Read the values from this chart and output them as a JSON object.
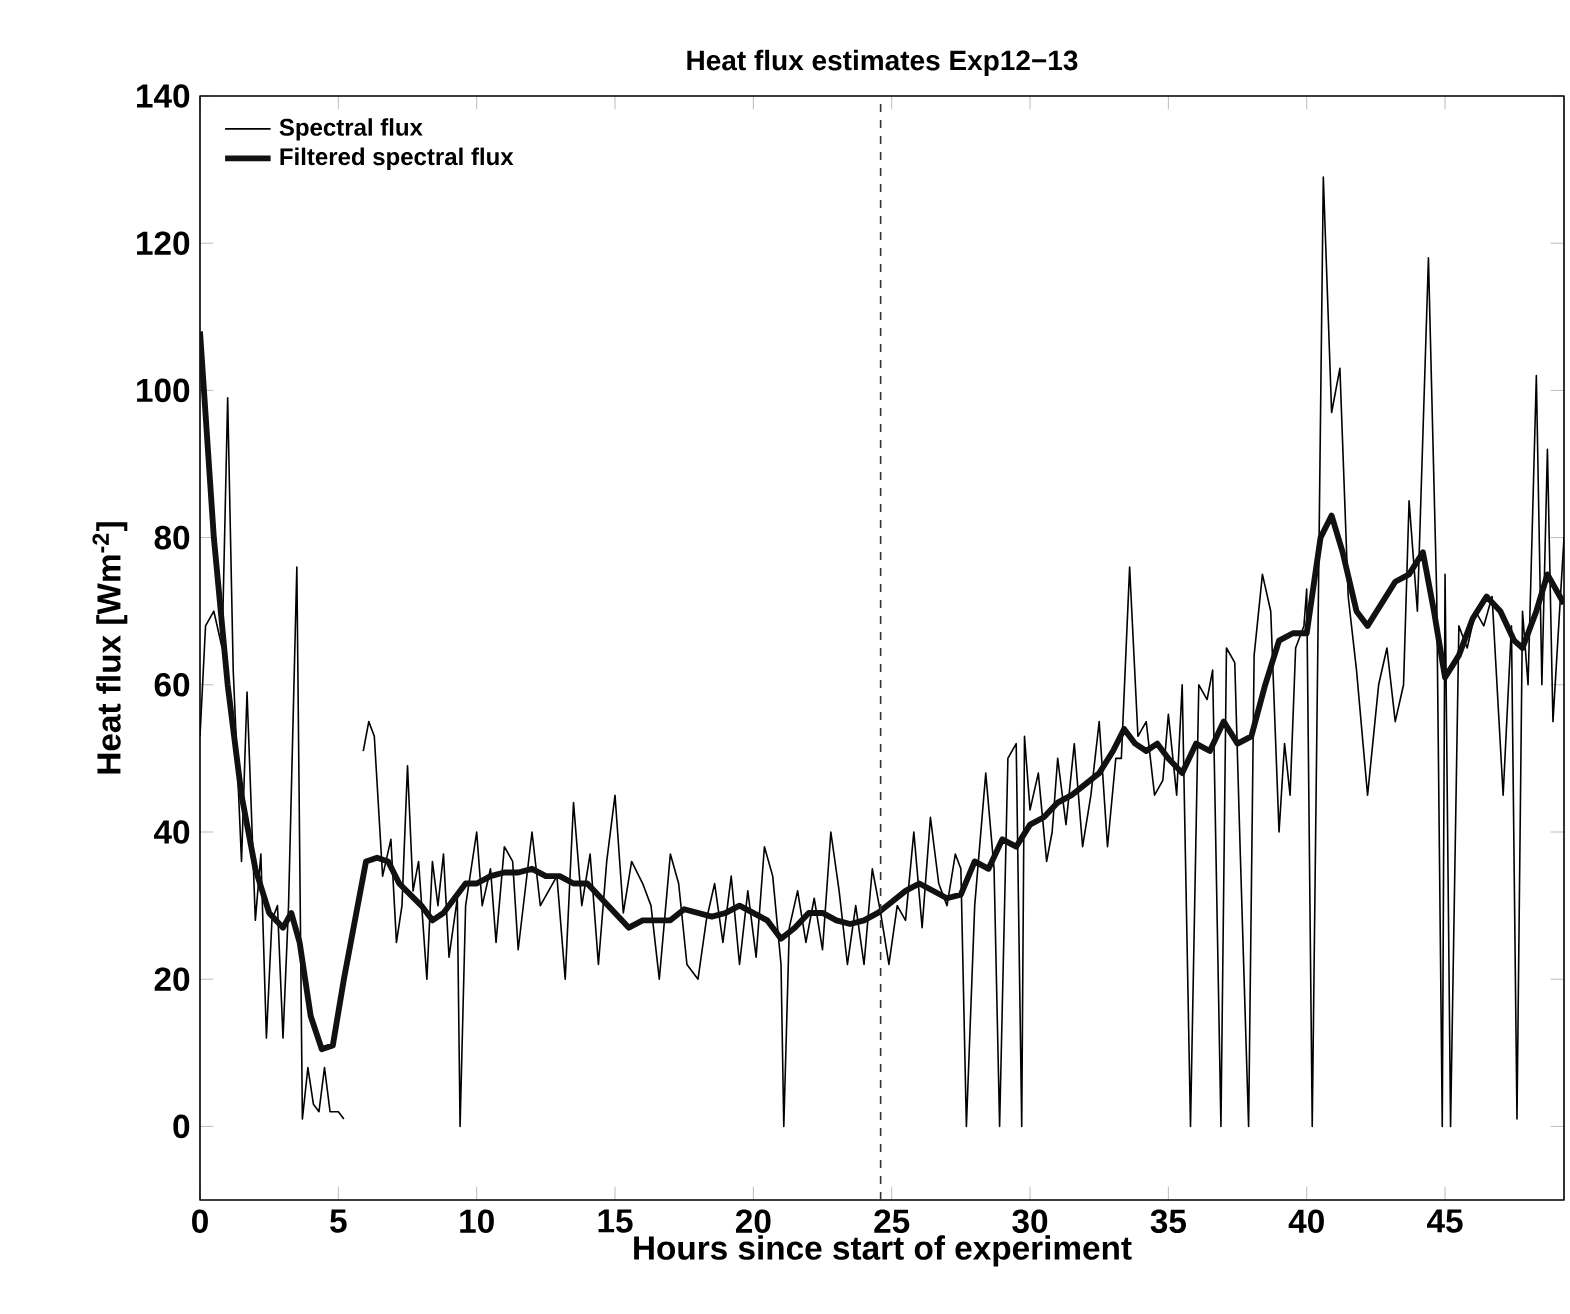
{
  "chart_data": {
    "type": "line",
    "title": "Heat flux estimates Exp12−13",
    "xlabel": "Hours since start of experiment",
    "ylabel": "Heat flux [Wm$^{-2}$]",
    "xlim": [
      0,
      49.3
    ],
    "ylim": [
      -10,
      140
    ],
    "xticks": [
      0,
      5,
      10,
      15,
      20,
      25,
      30,
      35,
      40,
      45
    ],
    "yticks": [
      0,
      20,
      40,
      60,
      80,
      100,
      120,
      140
    ],
    "grid": false,
    "legend": "top left",
    "marker": "none",
    "line_style": "solid",
    "ref_lines": [
      {
        "axis": "x",
        "value": 24.6,
        "line_style": "dashed",
        "color": "#333333"
      }
    ],
    "series": [
      {
        "name": "Spectral flux",
        "color": "#000000",
        "x": [
          0,
          0.2,
          0.5,
          0.8,
          1.0,
          1.2,
          1.5,
          1.7,
          2.0,
          2.2,
          2.4,
          2.6,
          2.8,
          3.0,
          3.2,
          3.5,
          3.7,
          3.9,
          4.1,
          4.3,
          4.5,
          4.7,
          5.0,
          5.2,
          5.5,
          5.9,
          6.1,
          6.3,
          6.6,
          6.9,
          7.1,
          7.3,
          7.5,
          7.7,
          7.9,
          8.2,
          8.4,
          8.6,
          8.8,
          9.0,
          9.3,
          9.4,
          9.6,
          10.0,
          10.2,
          10.5,
          10.7,
          11.0,
          11.3,
          11.5,
          12.0,
          12.3,
          12.6,
          12.9,
          13.2,
          13.5,
          13.8,
          14.1,
          14.4,
          14.7,
          15.0,
          15.3,
          15.6,
          16.0,
          16.3,
          16.6,
          17.0,
          17.3,
          17.6,
          18.0,
          18.3,
          18.6,
          18.9,
          19.2,
          19.5,
          19.8,
          20.1,
          20.4,
          20.7,
          21.0,
          21.1,
          21.3,
          21.6,
          21.9,
          22.2,
          22.5,
          22.8,
          23.1,
          23.4,
          23.7,
          24.0,
          24.3,
          24.6,
          24.9,
          25.2,
          25.5,
          25.8,
          26.1,
          26.4,
          26.7,
          27.0,
          27.3,
          27.5,
          27.7,
          28.0,
          28.4,
          28.7,
          28.9,
          29.2,
          29.5,
          29.7,
          29.8,
          30.0,
          30.3,
          30.6,
          30.8,
          31.0,
          31.3,
          31.6,
          31.9,
          32.2,
          32.5,
          32.8,
          33.1,
          33.3,
          33.6,
          33.9,
          34.2,
          34.5,
          34.8,
          35.0,
          35.3,
          35.5,
          35.8,
          36.1,
          36.4,
          36.6,
          36.9,
          37.1,
          37.4,
          37.6,
          37.9,
          38.1,
          38.4,
          38.7,
          39.0,
          39.2,
          39.4,
          39.6,
          39.9,
          40.0,
          40.2,
          40.6,
          40.9,
          41.2,
          41.5,
          41.8,
          42.2,
          42.6,
          42.9,
          43.2,
          43.5,
          43.7,
          44.0,
          44.4,
          44.7,
          44.9,
          45.0,
          45.2,
          45.5,
          45.8,
          46.1,
          46.4,
          46.7,
          47.1,
          47.4,
          47.6,
          47.8,
          48.0,
          48.3,
          48.5,
          48.7,
          48.9,
          49.3
        ],
        "values": [
          53,
          68,
          70,
          65,
          99,
          62,
          36,
          59,
          28,
          37,
          12,
          28,
          30,
          12,
          30,
          76,
          1,
          8,
          3,
          2,
          8,
          2,
          2,
          1,
          null,
          51,
          55,
          53,
          34,
          39,
          25,
          30,
          49,
          32,
          36,
          20,
          36,
          30,
          37,
          23,
          31,
          0,
          30,
          40,
          30,
          35,
          25,
          38,
          36,
          24,
          40,
          30,
          32,
          34,
          20,
          44,
          30,
          37,
          22,
          36,
          45,
          29,
          36,
          33,
          30,
          20,
          37,
          33,
          22,
          20,
          28,
          33,
          25,
          34,
          22,
          32,
          23,
          38,
          34,
          22,
          0,
          27,
          32,
          25,
          31,
          24,
          40,
          32,
          22,
          30,
          22,
          35,
          29,
          22,
          30,
          28,
          40,
          27,
          42,
          33,
          30,
          37,
          35,
          0,
          30,
          48,
          35,
          0,
          50,
          52,
          0,
          53,
          43,
          48,
          36,
          40,
          50,
          41,
          52,
          38,
          45,
          55,
          38,
          50,
          50,
          76,
          53,
          55,
          45,
          47,
          56,
          45,
          60,
          0,
          60,
          58,
          62,
          0,
          65,
          63,
          37,
          0,
          64,
          75,
          70,
          40,
          52,
          45,
          65,
          68,
          73,
          0,
          129,
          97,
          103,
          72,
          62,
          45,
          60,
          65,
          55,
          60,
          85,
          70,
          118,
          72,
          0,
          75,
          0,
          68,
          65,
          70,
          68,
          72,
          45,
          68,
          1,
          70,
          60,
          102,
          60,
          92,
          55,
          80
        ]
      },
      {
        "name": "Filtered spectral flux",
        "color": "#111111",
        "x": [
          0,
          0.5,
          1,
          1.5,
          2,
          2.5,
          3,
          3.3,
          3.6,
          4,
          4.4,
          4.8,
          5.2,
          5.6,
          6,
          6.4,
          6.8,
          7.2,
          7.6,
          8,
          8.4,
          8.8,
          9.2,
          9.6,
          10,
          10.5,
          11,
          11.5,
          12,
          12.5,
          13,
          13.5,
          14,
          14.5,
          15,
          15.5,
          16,
          16.5,
          17,
          17.5,
          18,
          18.5,
          19,
          19.5,
          20,
          20.5,
          21,
          21.5,
          22,
          22.5,
          23,
          23.5,
          24,
          24.5,
          25,
          25.5,
          26,
          26.5,
          27,
          27.5,
          28,
          28.5,
          29,
          29.5,
          30,
          30.5,
          31,
          31.5,
          32,
          32.5,
          33,
          33.4,
          33.8,
          34.2,
          34.6,
          35,
          35.5,
          36,
          36.5,
          37,
          37.5,
          38,
          38.5,
          39,
          39.5,
          40,
          40.5,
          40.9,
          41.3,
          41.8,
          42.2,
          42.7,
          43.2,
          43.7,
          44.2,
          44.6,
          45,
          45.5,
          46,
          46.5,
          47,
          47.5,
          47.8,
          48.3,
          48.7,
          49.3
        ],
        "values": [
          108,
          80,
          60,
          45,
          35,
          29,
          27,
          29,
          25,
          15,
          10.5,
          11,
          20,
          28,
          36,
          36.5,
          36,
          33,
          31.5,
          30,
          28,
          29,
          31,
          33,
          33,
          34,
          34.5,
          34.5,
          35,
          34,
          34,
          33,
          33,
          31,
          29,
          27,
          28,
          28,
          28,
          29.5,
          29,
          28.5,
          29,
          30,
          29,
          28,
          25.5,
          27,
          29,
          29,
          28,
          27.5,
          28,
          29,
          30.5,
          32,
          33,
          32,
          31,
          31.5,
          36,
          35,
          39,
          38,
          41,
          42,
          44,
          45,
          46.5,
          48,
          51,
          54,
          52,
          51,
          52,
          50,
          48,
          52,
          51,
          55,
          52,
          53,
          60,
          66,
          67,
          67,
          80,
          83,
          78,
          70,
          68,
          71,
          74,
          75,
          78,
          70,
          61,
          64,
          69,
          72,
          70,
          66,
          65,
          70,
          75,
          71
        ]
      }
    ]
  }
}
